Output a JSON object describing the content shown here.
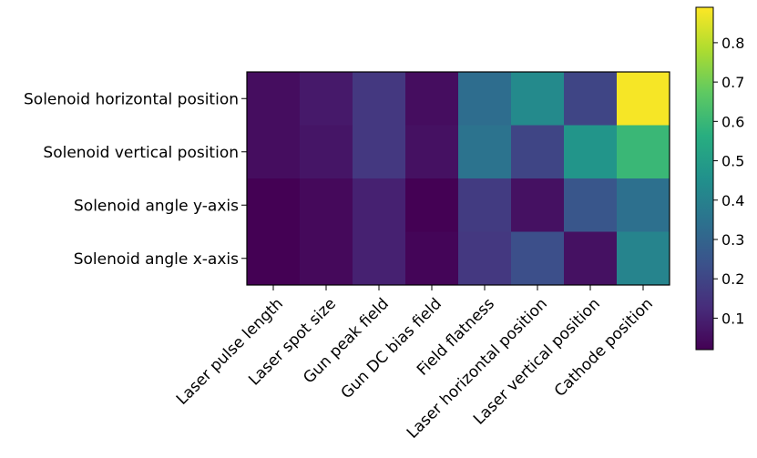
{
  "chart_data": {
    "type": "heatmap",
    "title": "",
    "xlabel": "",
    "ylabel": "",
    "colormap": "viridis",
    "x_categories": [
      "Laser pulse length",
      "Laser spot size",
      "Gun peak field",
      "Gun DC bias field",
      "Field flatness",
      "Laser horizontal position",
      "Laser vertical position",
      "Cathode position"
    ],
    "y_categories": [
      "Solenoid horizontal position",
      "Solenoid vertical position",
      "Solenoid angle y-axis",
      "Solenoid angle x-axis"
    ],
    "values": [
      [
        0.05,
        0.08,
        0.16,
        0.05,
        0.33,
        0.43,
        0.2,
        0.88
      ],
      [
        0.05,
        0.07,
        0.16,
        0.06,
        0.35,
        0.2,
        0.47,
        0.6
      ],
      [
        0.02,
        0.04,
        0.1,
        0.02,
        0.17,
        0.06,
        0.25,
        0.34
      ],
      [
        0.02,
        0.04,
        0.1,
        0.03,
        0.16,
        0.23,
        0.06,
        0.41
      ]
    ],
    "colorbar": {
      "range": [
        0.02,
        0.89
      ],
      "ticks": [
        0.1,
        0.2,
        0.3,
        0.4,
        0.5,
        0.6,
        0.7,
        0.8
      ],
      "tick_labels": [
        "0.1",
        "0.2",
        "0.3",
        "0.4",
        "0.5",
        "0.6",
        "0.7",
        "0.8"
      ]
    }
  }
}
